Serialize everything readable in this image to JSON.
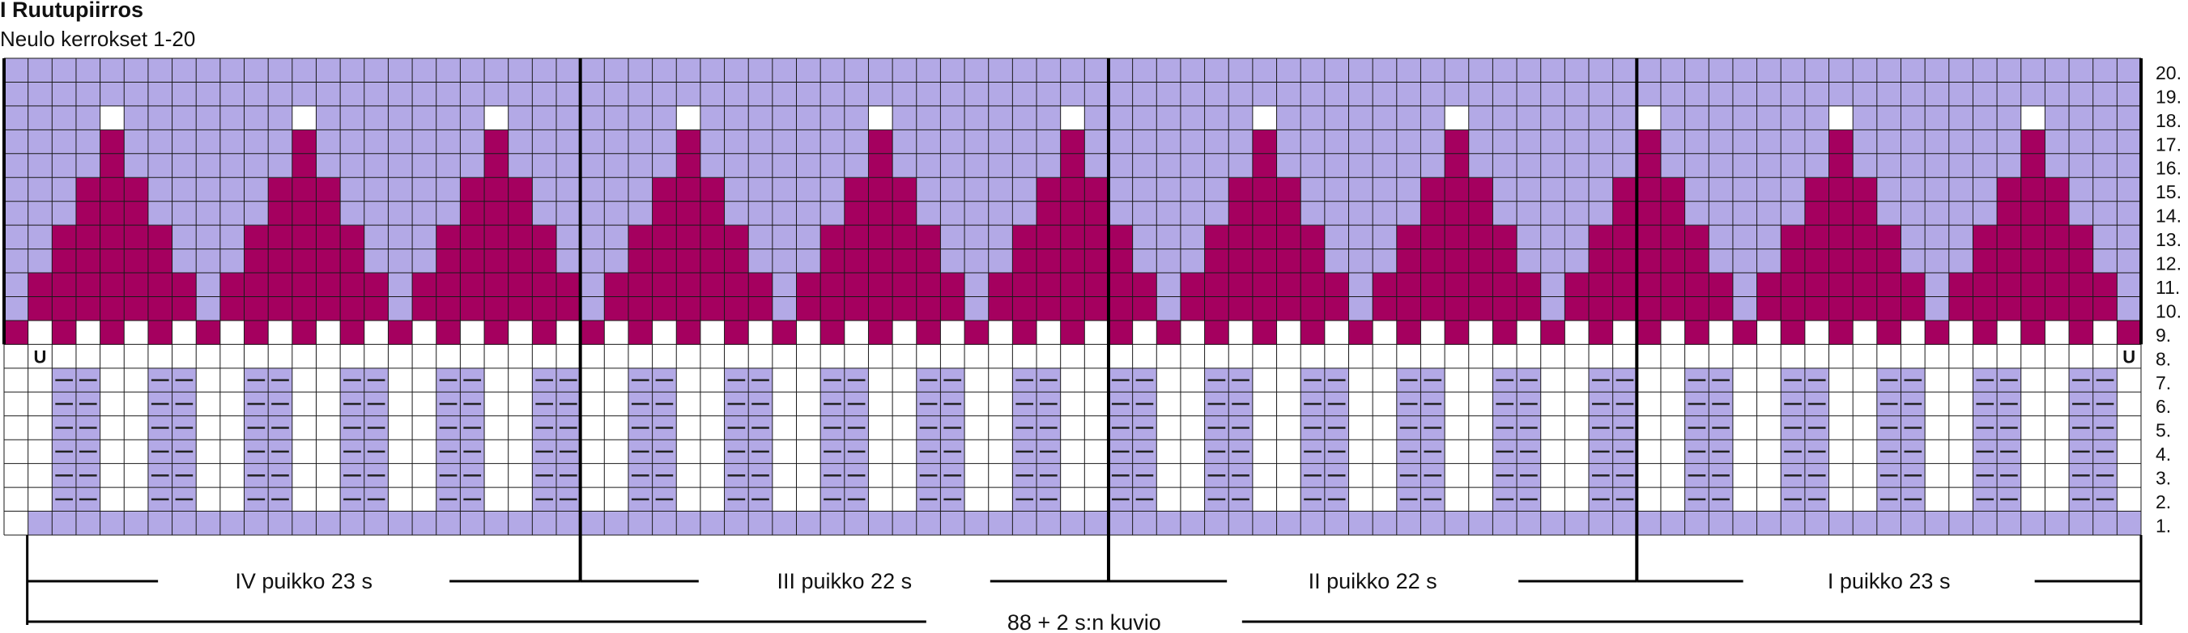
{
  "title": "I Ruutupiirros",
  "subtitle": "Neulo kerrokset 1-20",
  "chart": {
    "columns": 88,
    "rows": 20,
    "row_labels": [
      "20.",
      "19.",
      "18.",
      "17.",
      "16.",
      "15.",
      "14.",
      "13.",
      "12.",
      "11.",
      "10.",
      "9.",
      "8.",
      "7.",
      "6.",
      "5.",
      "4.",
      "3.",
      "2.",
      "1."
    ],
    "needles": [
      {
        "label": "IV puikko 23 s",
        "stitches": 23
      },
      {
        "label": "III puikko 22 s",
        "stitches": 22
      },
      {
        "label": "II puikko 22 s",
        "stitches": 22
      },
      {
        "label": "I puikko 23 s",
        "stitches": 23
      }
    ],
    "total_label": "88 + 2 s:n kuvio",
    "u_marker": "U",
    "colors": {
      "lilac": "#b3a9e6",
      "magenta": "#a5005f",
      "white": "#ffffff",
      "grid": "#1a1a1a"
    },
    "repeats": 11,
    "repeat_width": 8
  }
}
